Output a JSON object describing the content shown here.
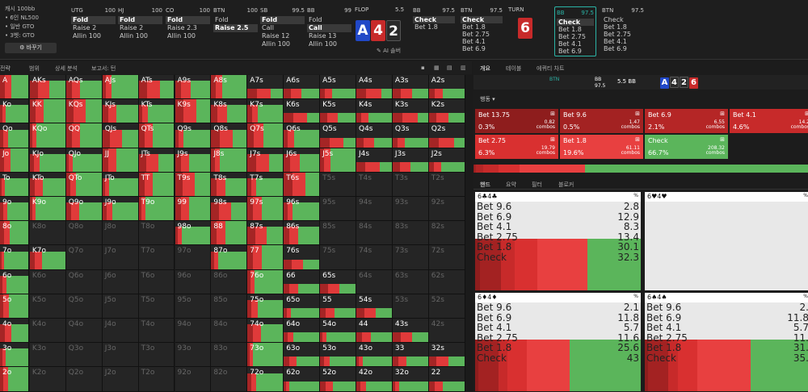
{
  "config": {
    "lines": [
      "캐시 100bb",
      "• 6인 NL500",
      "• 일반 GTO",
      "• 3벳: GTO"
    ],
    "change_button": "바꾸기"
  },
  "positions": [
    {
      "name": "UTG",
      "stack": "100",
      "actions": [
        "Fold",
        "Raise 2",
        "Allin 100"
      ],
      "selected": 0
    },
    {
      "name": "HJ",
      "stack": "100",
      "actions": [
        "Fold",
        "Raise 2",
        "Allin 100"
      ],
      "selected": 0
    },
    {
      "name": "CO",
      "stack": "100",
      "actions": [
        "Fold",
        "Raise 2.3",
        "Allin 100"
      ],
      "selected": 0
    },
    {
      "name": "BTN",
      "stack": "100",
      "actions": [
        "Fold",
        "Raise 2.5"
      ],
      "selected": 1
    },
    {
      "name": "SB",
      "stack": "99.5",
      "actions": [
        "Fold",
        "Call",
        "Raise 12",
        "Allin 100"
      ],
      "selected": 0
    },
    {
      "name": "BB",
      "stack": "99",
      "actions": [
        "Fold",
        "Call",
        "Raise 13",
        "Allin 100"
      ],
      "selected": 1
    }
  ],
  "flop": {
    "label": "FLOP",
    "pot": "5.5",
    "cards": [
      "A",
      "4",
      "2"
    ],
    "ai": "AI 솔버"
  },
  "street_pos": [
    {
      "name": "BB",
      "stack": "97.5",
      "actions": [
        "Check",
        "Bet 1.8"
      ],
      "selected": 0
    },
    {
      "name": "BTN",
      "stack": "97.5",
      "actions": [
        "Check",
        "Bet 1.8",
        "Bet 2.75",
        "Bet 4.1",
        "Bet 6.9"
      ],
      "selected": 0
    }
  ],
  "turn": {
    "label": "TURN",
    "pot": "5.5",
    "card": "6"
  },
  "turn_pos": [
    {
      "name": "BB",
      "stack": "97.5",
      "actions": [
        "Check",
        "Bet 1.8",
        "Bet 2.75",
        "Bet 4.1",
        "Bet 6.9"
      ],
      "selected": 0
    },
    {
      "name": "BTN",
      "stack": "97.5",
      "actions": [
        "Check",
        "Bet 1.8",
        "Bet 2.75",
        "Bet 4.1",
        "Bet 6.9"
      ],
      "selected": -1
    }
  ],
  "toolbar": {
    "items": [
      "전략",
      "범위",
      "상세 분석",
      "보고서: 턴"
    ]
  },
  "grid": {
    "labels": [
      [
        "A",
        "AKs",
        "AQs",
        "AJs",
        "ATs",
        "A9s",
        "A8s",
        "A7s",
        "A6s",
        "A5s",
        "A4s",
        "A3s",
        "A2s"
      ],
      [
        "Ko",
        "KK",
        "KQs",
        "KJs",
        "KTs",
        "K9s",
        "K8s",
        "K7s",
        "K6s",
        "K5s",
        "K4s",
        "K3s",
        "K2s"
      ],
      [
        "Qo",
        "KQo",
        "QQ",
        "QJs",
        "QTs",
        "Q9s",
        "Q8s",
        "Q7s",
        "Q6s",
        "Q5s",
        "Q4s",
        "Q3s",
        "Q2s"
      ],
      [
        "Jo",
        "KJo",
        "QJo",
        "JJ",
        "JTs",
        "J9s",
        "J8s",
        "J7s",
        "J6s",
        "J5s",
        "J4s",
        "J3s",
        "J2s"
      ],
      [
        "To",
        "KTo",
        "QTo",
        "JTo",
        "TT",
        "T9s",
        "T8s",
        "T7s",
        "T6s",
        "T5s",
        "T4s",
        "T3s",
        "T2s"
      ],
      [
        "9o",
        "K9o",
        "Q9o",
        "J9o",
        "T9o",
        "99",
        "98s",
        "97s",
        "96s",
        "95s",
        "94s",
        "93s",
        "92s"
      ],
      [
        "8o",
        "K8o",
        "Q8o",
        "J8o",
        "T8o",
        "98o",
        "88",
        "87s",
        "86s",
        "85s",
        "84s",
        "83s",
        "82s"
      ],
      [
        "7o",
        "K7o",
        "Q7o",
        "J7o",
        "T7o",
        "97o",
        "87o",
        "77",
        "76s",
        "75s",
        "74s",
        "73s",
        "72s"
      ],
      [
        "6o",
        "K6o",
        "Q6o",
        "J6o",
        "T6o",
        "96o",
        "86o",
        "76o",
        "66",
        "65s",
        "64s",
        "63s",
        "62s"
      ],
      [
        "5o",
        "K5o",
        "Q5o",
        "J5o",
        "T5o",
        "95o",
        "85o",
        "75o",
        "65o",
        "55",
        "54s",
        "53s",
        "52s"
      ],
      [
        "4o",
        "K4o",
        "Q4o",
        "J4o",
        "T4o",
        "94o",
        "84o",
        "74o",
        "64o",
        "54o",
        "44",
        "43s",
        "42s"
      ],
      [
        "3o",
        "K3o",
        "Q3o",
        "J3o",
        "T3o",
        "93o",
        "83o",
        "73o",
        "63o",
        "53o",
        "43o",
        "33",
        "32s"
      ],
      [
        "2o",
        "K2o",
        "Q2o",
        "J2o",
        "T2o",
        "92o",
        "82o",
        "72o",
        "62o",
        "52o",
        "42o",
        "32o",
        "22"
      ]
    ]
  },
  "right_tabs": [
    "개요",
    "테이블",
    "에퀴티 차트"
  ],
  "info": {
    "positions": [
      "BTN",
      "BB"
    ],
    "pot": "5.5 BB",
    "board": [
      "A",
      "4",
      "2",
      "6"
    ],
    "stack": "97.5"
  },
  "actions_label": "행동",
  "strategy": [
    {
      "name": "Bet 13.75",
      "pct": "0.3%",
      "combos": "0.82",
      "color": "#8e1d1d"
    },
    {
      "name": "Bet 9.6",
      "pct": "0.5%",
      "combos": "1.47",
      "color": "#a32222"
    },
    {
      "name": "Bet 6.9",
      "pct": "2.1%",
      "combos": "6.55",
      "color": "#b52626"
    },
    {
      "name": "Bet 4.1",
      "pct": "4.6%",
      "combos": "14.2",
      "color": "#c72a2a"
    },
    {
      "name": "Bet 2.75",
      "pct": "6.3%",
      "combos": "19.79",
      "color": "#d93030"
    },
    {
      "name": "Bet 1.8",
      "pct": "19.6%",
      "combos": "61.11",
      "color": "#e84040"
    },
    {
      "name": "Check",
      "pct": "66.7%",
      "combos": "208.32",
      "color": "#5bb55b"
    }
  ],
  "combos_word": "combos",
  "hand_tabs": [
    "핸드",
    "요약",
    "필터",
    "블로커"
  ],
  "combos": [
    {
      "title": "6♣4♣",
      "rows": [
        [
          "Bet 9.6",
          "2.8"
        ],
        [
          "Bet 6.9",
          "12.9"
        ],
        [
          "Bet 4.1",
          "8.3"
        ],
        [
          "Bet 2.75",
          "13.4"
        ],
        [
          "Bet 1.8",
          "30.1"
        ],
        [
          "Check",
          "32.3"
        ]
      ],
      "stack": [
        2.8,
        12.9,
        8.3,
        13.4,
        30.1,
        32.3
      ]
    },
    {
      "title": "6♥4♥",
      "rows": [],
      "stack": []
    },
    {
      "title": "6♦4♦",
      "rows": [
        [
          "Bet 9.6",
          "2.1"
        ],
        [
          "Bet 6.9",
          "11.8"
        ],
        [
          "Bet 4.1",
          "5.7"
        ],
        [
          "Bet 2.75",
          "11.6"
        ],
        [
          "Bet 1.8",
          "25.6"
        ],
        [
          "Check",
          "43"
        ]
      ],
      "stack": [
        2.1,
        11.8,
        5.7,
        11.6,
        25.6,
        43
      ]
    },
    {
      "title": "6♠4♠",
      "rows": [
        [
          "Bet 9.6",
          "2."
        ],
        [
          "Bet 6.9",
          "11.8"
        ],
        [
          "Bet 4.1",
          "5.7"
        ],
        [
          "Bet 2.75",
          "11."
        ],
        [
          "Bet 1.8",
          "31."
        ],
        [
          "Check",
          "35."
        ]
      ],
      "stack": [
        2,
        11.8,
        5.7,
        11,
        31,
        35
      ]
    }
  ]
}
